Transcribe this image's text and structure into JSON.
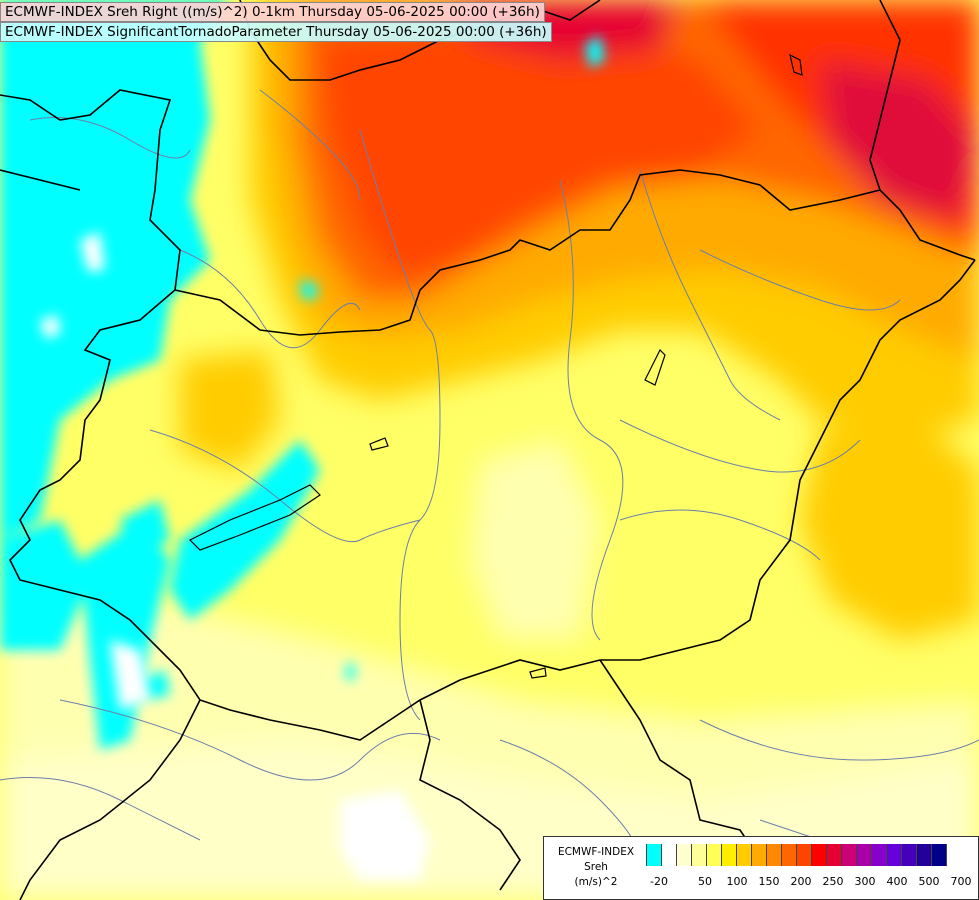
{
  "titles": {
    "line1": "ECMWF-INDEX Sreh Right ((m/s)^2) 0-1km Thursday 05-06-2025 00:00 (+36h)",
    "line2": "ECMWF-INDEX SignificantTornadoParameter Thursday 05-06-2025 00:00 (+36h)"
  },
  "legend": {
    "line1": "ECMWF-INDEX",
    "line2": "Sreh",
    "line3": "(m/s)^2",
    "colors": [
      "#00ffff",
      "#ffffff",
      "#ffffd0",
      "#ffff99",
      "#ffff55",
      "#ffee00",
      "#ffcc00",
      "#ffaa00",
      "#ff8800",
      "#ff6600",
      "#ff4400",
      "#ff0000",
      "#e60033",
      "#cc0077",
      "#aa00aa",
      "#8800cc",
      "#6600dd",
      "#4400bb",
      "#220099",
      "#000088"
    ],
    "ticks": [
      "-20",
      "50",
      "100",
      "150",
      "200",
      "250",
      "300",
      "400",
      "500",
      "700"
    ]
  }
}
